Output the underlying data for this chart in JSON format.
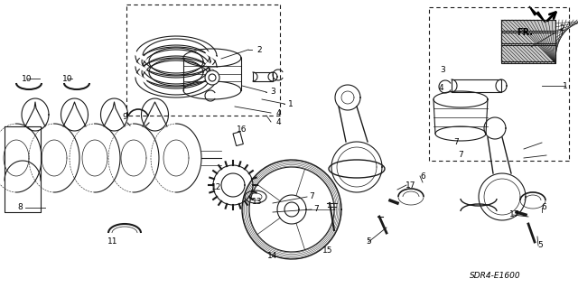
{
  "bg_color": "#ffffff",
  "fig_width": 6.4,
  "fig_height": 3.19,
  "dpi": 100,
  "diagram_code": "SDR4-E1600",
  "line_color": "#1a1a1a",
  "gray_color": "#888888",
  "label_fontsize": 6.5,
  "diagram_fontsize": 6.5
}
